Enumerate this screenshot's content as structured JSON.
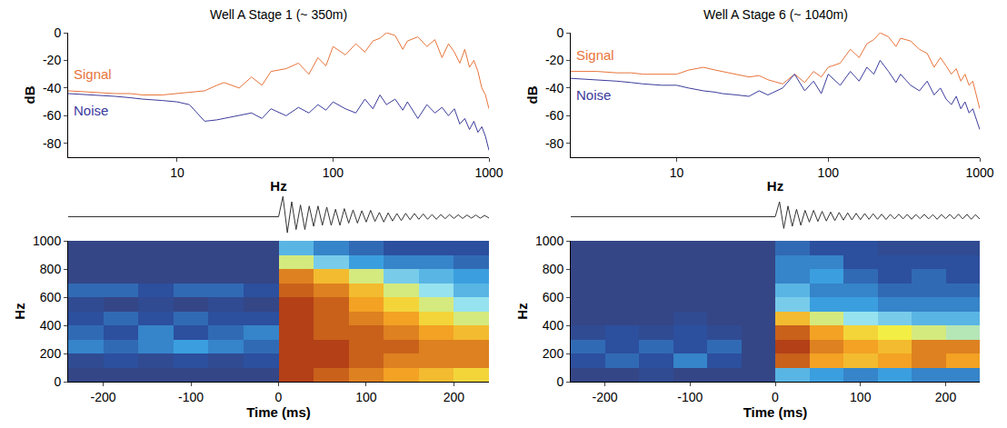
{
  "chart_data": [
    {
      "type": "line",
      "title": "Well A Stage 1 (~ 350m)",
      "x_label": "Hz",
      "y_label": "dB",
      "log": "x",
      "x": [
        2,
        3,
        4,
        5,
        6,
        8,
        10,
        12,
        15,
        18,
        20,
        25,
        30,
        35,
        40,
        50,
        60,
        70,
        80,
        90,
        100,
        120,
        140,
        160,
        180,
        200,
        220,
        250,
        280,
        300,
        350,
        400,
        450,
        500,
        550,
        600,
        650,
        700,
        750,
        800,
        850,
        900,
        950,
        1000
      ],
      "series": [
        {
          "name": "Signal",
          "color": "#e8743b",
          "values": [
            -42,
            -43,
            -44,
            -44,
            -45,
            -45,
            -44,
            -43,
            -42,
            -38,
            -36,
            -40,
            -32,
            -38,
            -28,
            -26,
            -22,
            -30,
            -18,
            -24,
            -10,
            -16,
            -8,
            -14,
            -6,
            -4,
            0,
            -2,
            -12,
            -6,
            -3,
            -10,
            -5,
            -18,
            -8,
            -14,
            -22,
            -12,
            -25,
            -20,
            -28,
            -40,
            -45,
            -55
          ]
        },
        {
          "name": "Noise",
          "color": "#3b3b9c",
          "values": [
            -44,
            -45,
            -46,
            -47,
            -48,
            -49,
            -50,
            -52,
            -64,
            -63,
            -62,
            -60,
            -58,
            -62,
            -55,
            -60,
            -54,
            -58,
            -52,
            -56,
            -50,
            -55,
            -58,
            -48,
            -55,
            -45,
            -52,
            -48,
            -56,
            -50,
            -62,
            -52,
            -58,
            -54,
            -60,
            -55,
            -66,
            -62,
            -70,
            -64,
            -72,
            -68,
            -75,
            -85
          ]
        }
      ],
      "xlim": [
        2,
        1000
      ],
      "xticks": [
        10,
        100,
        1000
      ],
      "ylim": [
        -90,
        0
      ],
      "yticks": [
        0,
        -20,
        -40,
        -60,
        -80
      ]
    },
    {
      "type": "line",
      "title": "Well A Stage 6 (~ 1040m)",
      "x_label": "Hz",
      "y_label": "dB",
      "log": "x",
      "x": [
        2,
        3,
        4,
        5,
        6,
        8,
        10,
        12,
        15,
        18,
        20,
        25,
        30,
        35,
        40,
        50,
        60,
        70,
        80,
        90,
        100,
        120,
        140,
        160,
        180,
        200,
        220,
        250,
        280,
        300,
        350,
        400,
        450,
        500,
        550,
        600,
        650,
        700,
        750,
        800,
        850,
        900,
        950,
        1000
      ],
      "series": [
        {
          "name": "Signal",
          "color": "#e8743b",
          "values": [
            -28,
            -28,
            -29,
            -29,
            -30,
            -30,
            -30,
            -27,
            -25,
            -27,
            -28,
            -30,
            -32,
            -31,
            -34,
            -37,
            -30,
            -36,
            -28,
            -32,
            -25,
            -22,
            -12,
            -18,
            -8,
            -5,
            0,
            -3,
            -10,
            -4,
            -6,
            -12,
            -15,
            -25,
            -18,
            -24,
            -30,
            -26,
            -35,
            -30,
            -38,
            -35,
            -45,
            -55
          ]
        },
        {
          "name": "Noise",
          "color": "#3b3b9c",
          "values": [
            -33,
            -34,
            -35,
            -36,
            -37,
            -38,
            -38,
            -40,
            -42,
            -43,
            -44,
            -45,
            -46,
            -42,
            -45,
            -40,
            -30,
            -42,
            -35,
            -44,
            -30,
            -38,
            -28,
            -35,
            -25,
            -30,
            -20,
            -28,
            -36,
            -30,
            -38,
            -42,
            -35,
            -45,
            -40,
            -48,
            -52,
            -46,
            -55,
            -50,
            -58,
            -55,
            -62,
            -70
          ]
        }
      ],
      "xlim": [
        2,
        1000
      ],
      "xticks": [
        10,
        100,
        1000
      ],
      "ylim": [
        -90,
        0
      ],
      "yticks": [
        0,
        -20,
        -40,
        -60,
        -80
      ]
    },
    {
      "type": "line",
      "tick_labels": false,
      "color": "#333333",
      "x": [
        -240,
        0,
        5,
        10,
        15,
        20,
        25,
        30,
        35,
        40,
        45,
        50,
        55,
        60,
        65,
        70,
        75,
        80,
        85,
        90,
        95,
        100,
        105,
        110,
        115,
        120,
        125,
        130,
        135,
        140,
        145,
        150,
        155,
        160,
        165,
        170,
        175,
        180,
        185,
        190,
        195,
        200,
        205,
        210,
        215,
        220,
        225,
        230,
        235,
        240
      ],
      "values": [
        0,
        0,
        0.95,
        -0.75,
        0.7,
        -0.6,
        0.55,
        -0.6,
        0.5,
        -0.45,
        0.5,
        -0.4,
        0.45,
        -0.4,
        0.35,
        -0.4,
        0.38,
        -0.3,
        0.32,
        -0.3,
        0.28,
        -0.25,
        0.3,
        -0.22,
        0.2,
        -0.25,
        0.18,
        -0.2,
        0.15,
        -0.18,
        0.16,
        -0.14,
        0.15,
        -0.12,
        0.13,
        -0.12,
        0.1,
        -0.12,
        0.1,
        -0.09,
        0.1,
        -0.08,
        0.09,
        -0.08,
        0.08,
        -0.07,
        0.08,
        -0.07,
        0.06,
        -0.06
      ],
      "xlim": [
        -240,
        240
      ],
      "ylim": [
        -1,
        1
      ]
    },
    {
      "type": "line",
      "tick_labels": false,
      "color": "#333333",
      "x": [
        -240,
        0,
        5,
        10,
        15,
        20,
        25,
        30,
        35,
        40,
        45,
        50,
        55,
        60,
        65,
        70,
        75,
        80,
        85,
        90,
        95,
        100,
        105,
        110,
        115,
        120,
        125,
        130,
        135,
        140,
        145,
        150,
        155,
        160,
        165,
        170,
        175,
        180,
        185,
        190,
        195,
        200,
        205,
        210,
        215,
        220,
        225,
        230,
        235,
        240
      ],
      "values": [
        0,
        0,
        0.7,
        -0.55,
        0.5,
        -0.45,
        0.35,
        -0.4,
        0.3,
        -0.25,
        0.3,
        -0.22,
        0.25,
        -0.2,
        0.22,
        -0.18,
        0.2,
        -0.16,
        0.18,
        -0.15,
        0.16,
        -0.14,
        0.15,
        -0.12,
        0.14,
        -0.12,
        0.12,
        -0.13,
        0.11,
        -0.1,
        0.12,
        -0.1,
        0.11,
        -0.12,
        0.1,
        -0.09,
        0.11,
        -0.1,
        0.1,
        -0.12,
        0.1,
        -0.09,
        0.11,
        -0.1,
        0.12,
        -0.1,
        0.11,
        -0.12,
        0.1,
        -0.11
      ],
      "xlim": [
        -240,
        240
      ],
      "ylim": [
        -1,
        1
      ]
    },
    {
      "type": "heatmap",
      "x_label": "Time (ms)",
      "y_label": "Hz",
      "x": [
        -220,
        -180,
        -140,
        -100,
        -60,
        -20,
        20,
        60,
        100,
        140,
        180,
        220
      ],
      "y": [
        50,
        150,
        250,
        350,
        450,
        550,
        650,
        750,
        850,
        950
      ],
      "z": [
        [
          0.1,
          0.1,
          0.1,
          0.1,
          0.1,
          0.1,
          0.95,
          0.9,
          0.85,
          0.8,
          0.75,
          0.7
        ],
        [
          0.15,
          0.2,
          0.15,
          0.2,
          0.15,
          0.2,
          0.95,
          0.95,
          0.9,
          0.85,
          0.85,
          0.85
        ],
        [
          0.3,
          0.25,
          0.3,
          0.35,
          0.3,
          0.25,
          0.95,
          0.95,
          0.9,
          0.9,
          0.85,
          0.85
        ],
        [
          0.25,
          0.2,
          0.3,
          0.2,
          0.25,
          0.3,
          0.95,
          0.9,
          0.9,
          0.85,
          0.8,
          0.75
        ],
        [
          0.2,
          0.25,
          0.2,
          0.25,
          0.2,
          0.2,
          0.95,
          0.9,
          0.85,
          0.8,
          0.7,
          0.6
        ],
        [
          0.15,
          0.1,
          0.15,
          0.1,
          0.15,
          0.1,
          0.95,
          0.9,
          0.8,
          0.7,
          0.6,
          0.5
        ],
        [
          0.25,
          0.25,
          0.2,
          0.25,
          0.25,
          0.2,
          0.9,
          0.85,
          0.75,
          0.6,
          0.5,
          0.4
        ],
        [
          0.1,
          0.1,
          0.1,
          0.1,
          0.1,
          0.1,
          0.85,
          0.75,
          0.6,
          0.45,
          0.4,
          0.35
        ],
        [
          0.1,
          0.1,
          0.1,
          0.1,
          0.1,
          0.1,
          0.6,
          0.45,
          0.35,
          0.3,
          0.3,
          0.25
        ],
        [
          0.1,
          0.1,
          0.1,
          0.1,
          0.1,
          0.1,
          0.4,
          0.3,
          0.25,
          0.2,
          0.2,
          0.2
        ]
      ],
      "zlim": [
        0,
        1
      ],
      "xlim": [
        -240,
        240
      ],
      "xticks": [
        -200,
        -100,
        0,
        100,
        200
      ],
      "ylim": [
        0,
        1000
      ],
      "yticks": [
        0,
        200,
        400,
        600,
        800,
        1000
      ]
    },
    {
      "type": "heatmap",
      "x_label": "Time (ms)",
      "y_label": "Hz",
      "x": [
        -220,
        -180,
        -140,
        -100,
        -60,
        -20,
        20,
        60,
        100,
        140,
        180,
        220
      ],
      "y": [
        50,
        150,
        250,
        350,
        450,
        550,
        650,
        750,
        850,
        950
      ],
      "z": [
        [
          0.1,
          0.1,
          0.15,
          0.1,
          0.1,
          0.1,
          0.4,
          0.35,
          0.3,
          0.35,
          0.3,
          0.3
        ],
        [
          0.2,
          0.25,
          0.2,
          0.3,
          0.2,
          0.1,
          0.9,
          0.8,
          0.75,
          0.8,
          0.85,
          0.8
        ],
        [
          0.25,
          0.2,
          0.25,
          0.2,
          0.25,
          0.1,
          0.95,
          0.85,
          0.8,
          0.75,
          0.85,
          0.85
        ],
        [
          0.15,
          0.2,
          0.15,
          0.2,
          0.15,
          0.1,
          0.9,
          0.8,
          0.7,
          0.65,
          0.6,
          0.55
        ],
        [
          0.1,
          0.1,
          0.1,
          0.15,
          0.1,
          0.1,
          0.75,
          0.6,
          0.5,
          0.45,
          0.4,
          0.4
        ],
        [
          0.1,
          0.1,
          0.1,
          0.1,
          0.1,
          0.1,
          0.45,
          0.35,
          0.35,
          0.3,
          0.3,
          0.3
        ],
        [
          0.1,
          0.1,
          0.1,
          0.1,
          0.1,
          0.1,
          0.4,
          0.3,
          0.3,
          0.25,
          0.25,
          0.25
        ],
        [
          0.1,
          0.1,
          0.1,
          0.1,
          0.1,
          0.1,
          0.3,
          0.35,
          0.25,
          0.2,
          0.25,
          0.2
        ],
        [
          0.1,
          0.1,
          0.1,
          0.1,
          0.1,
          0.1,
          0.3,
          0.3,
          0.2,
          0.2,
          0.2,
          0.2
        ],
        [
          0.1,
          0.1,
          0.1,
          0.1,
          0.1,
          0.1,
          0.25,
          0.2,
          0.2,
          0.15,
          0.15,
          0.15
        ]
      ],
      "zlim": [
        0,
        1
      ],
      "xlim": [
        -240,
        240
      ],
      "xticks": [
        -200,
        -100,
        0,
        100,
        200
      ],
      "ylim": [
        0,
        1000
      ],
      "yticks": [
        0,
        200,
        400,
        600,
        800,
        1000
      ]
    }
  ]
}
